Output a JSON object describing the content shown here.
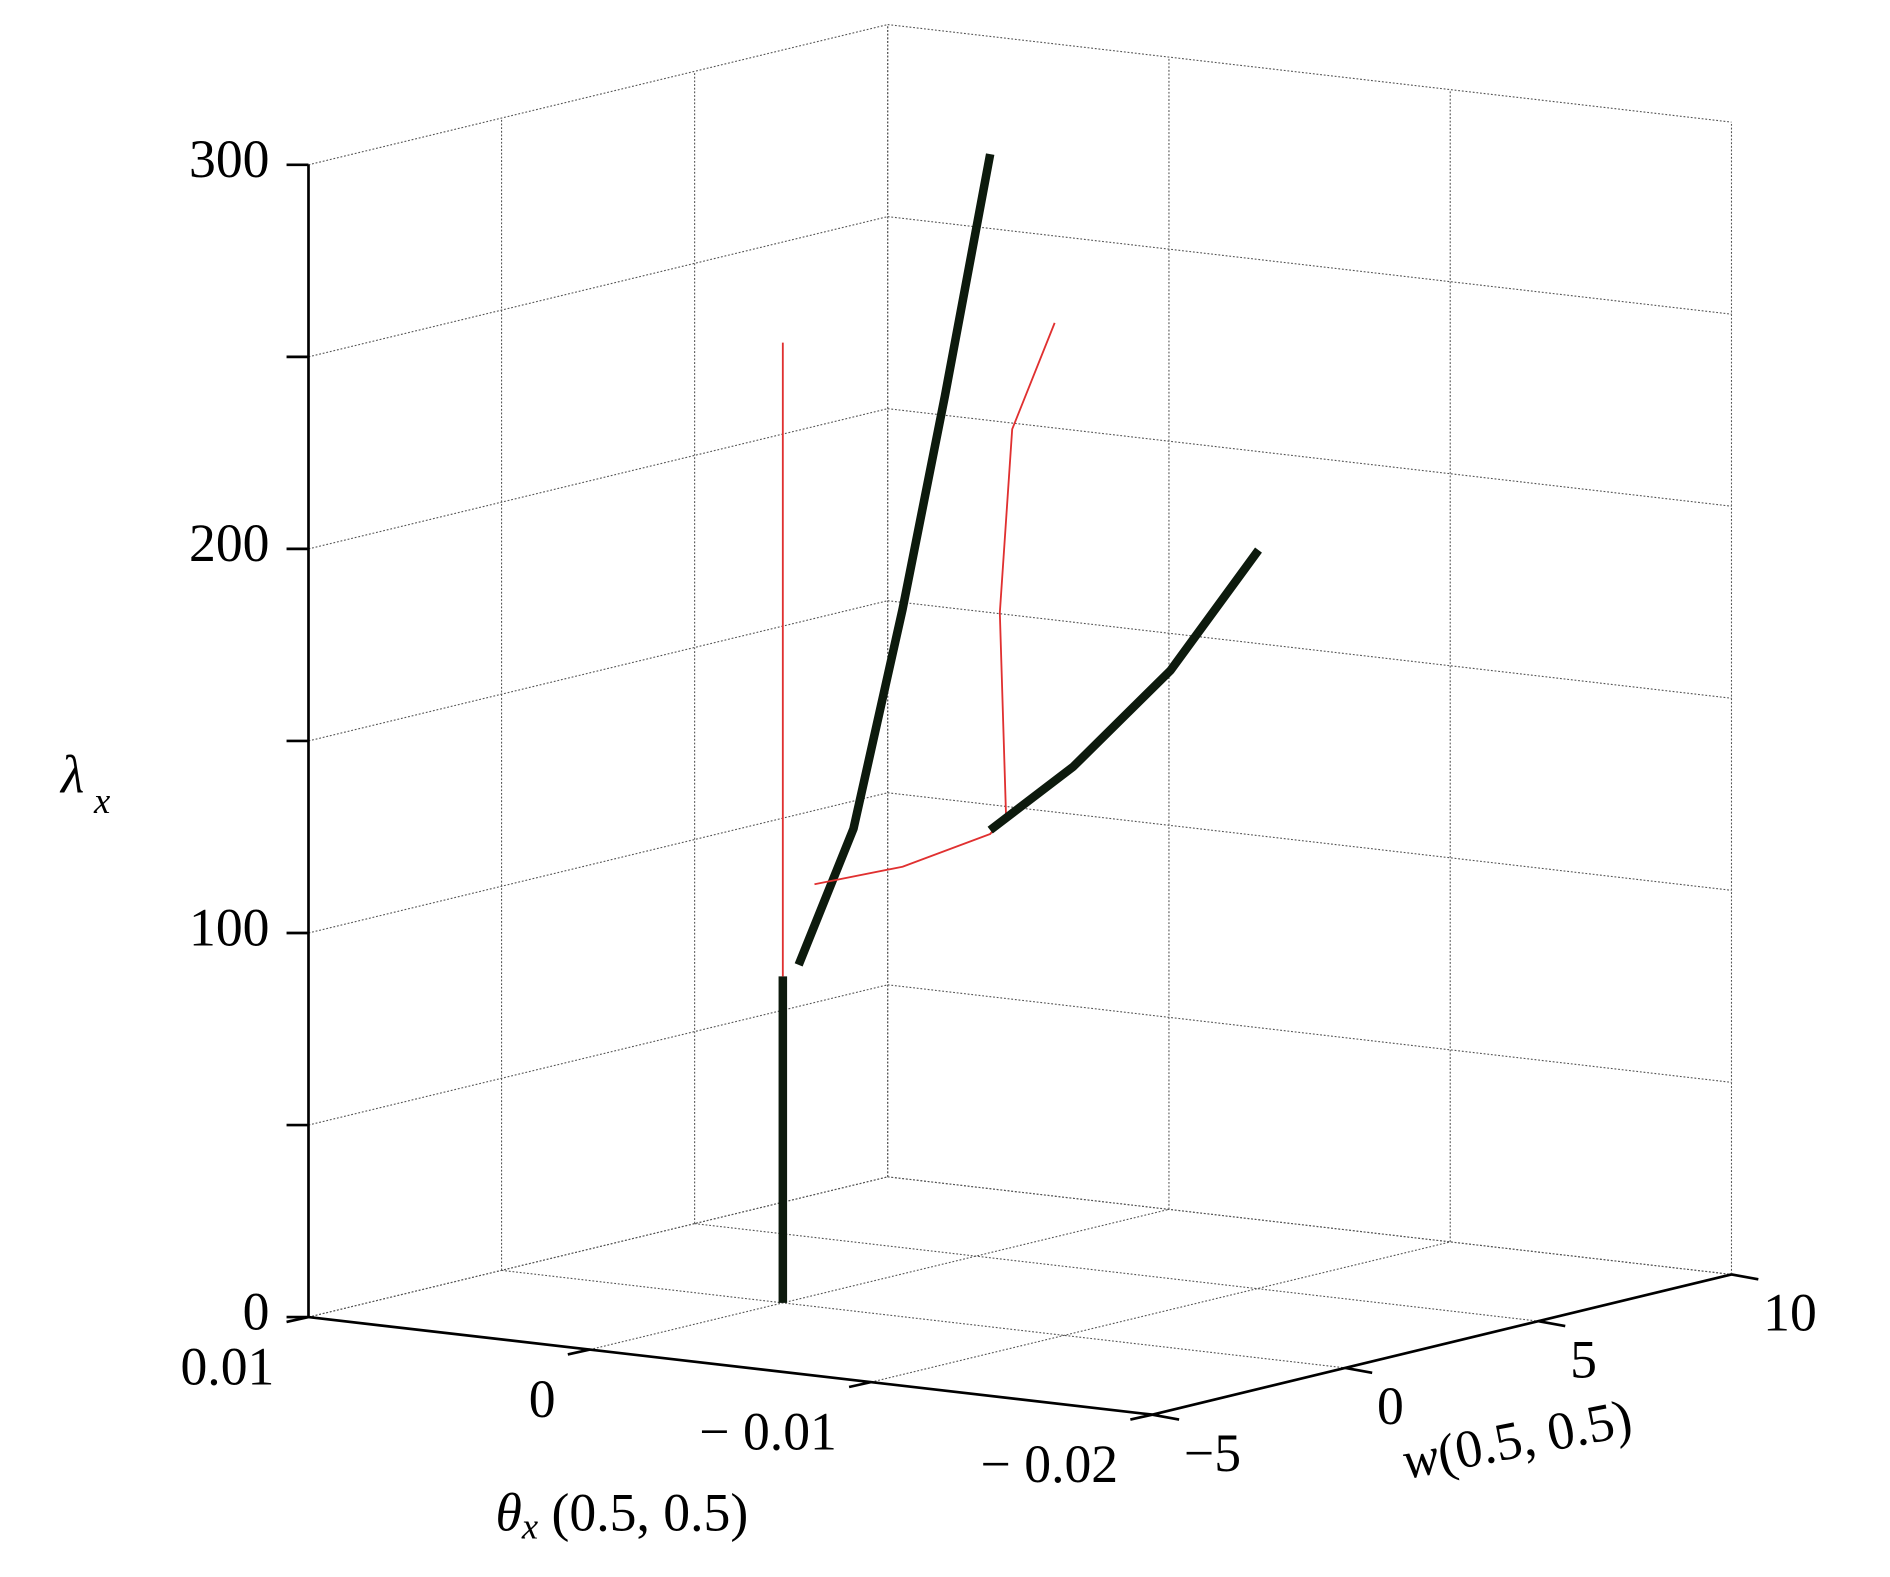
{
  "chart_data": {
    "type": "line3d",
    "xlabel": {
      "symbol": "θ",
      "subscript": "x",
      "text": " (0.5, 0.5)"
    },
    "ylabel": {
      "symbol": "w",
      "text": "(0.5, 0.5)"
    },
    "zlabel": {
      "symbol": "λ",
      "subscript": "x"
    },
    "xlim": [
      0.01,
      -0.02
    ],
    "ylim": [
      -5,
      10
    ],
    "zlim": [
      0,
      300
    ],
    "xticks": [
      0.01,
      0,
      {
        "value": -0.01,
        "label": "− 0.01"
      },
      {
        "value": -0.02,
        "label": "− 0.02"
      }
    ],
    "yticks": [
      {
        "value": -5,
        "label": "−5"
      },
      0,
      5,
      10
    ],
    "zticks": [
      0,
      {
        "value": 50,
        "label": null
      },
      100,
      {
        "value": 150,
        "label": null
      },
      200,
      {
        "value": 250,
        "label": null
      },
      300
    ],
    "grid": true,
    "series": [
      {
        "color": "#0d1a0d",
        "width": 7,
        "x": [
          0,
          0
        ],
        "y": [
          0,
          0
        ],
        "z": [
          0,
          85
        ]
      },
      {
        "color": "#e03030",
        "width": 1.5,
        "x": [
          0,
          0
        ],
        "y": [
          0,
          0
        ],
        "z": [
          85,
          250
        ]
      },
      {
        "color": "#0d1a0d",
        "width": 7,
        "x": [
          0,
          0,
          0,
          0,
          0
        ],
        "y": [
          0.41,
          1.83,
          3.1,
          4.2,
          5.37
        ],
        "z": [
          87,
          119,
          173,
          226,
          286
        ]
      },
      {
        "color": "#e03030",
        "width": 1.5,
        "x": [
          0,
          0,
          0,
          0,
          0,
          0,
          0
        ],
        "y": [
          0.82,
          3.1,
          5.37,
          5.78,
          5.62,
          5.94,
          7.04
        ],
        "z": [
          107,
          106,
          109,
          113,
          166,
          213,
          238
        ]
      },
      {
        "color": "#0d1a0d",
        "width": 7,
        "x": [
          0,
          -0.00295,
          -0.00641,
          -0.00954
        ],
        "y": [
          5.37,
          5.37,
          5.37,
          5.37
        ],
        "z": [
          110,
          129,
          157,
          191
        ]
      }
    ]
  }
}
